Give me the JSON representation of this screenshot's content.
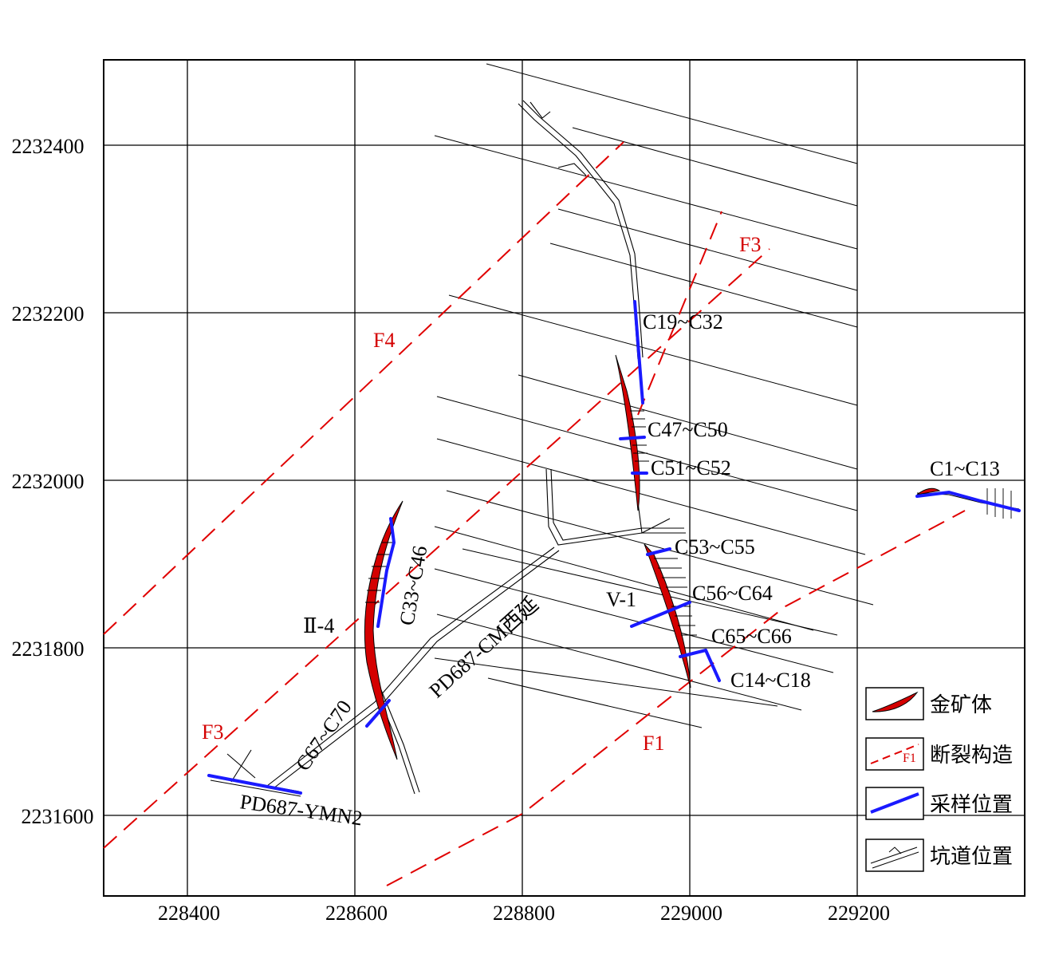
{
  "map": {
    "x_ticks": [
      "228400",
      "228600",
      "228800",
      "229000",
      "229200"
    ],
    "y_ticks": [
      "2232400",
      "2232200",
      "2232000",
      "2231800",
      "2231600"
    ],
    "colors": {
      "ore": "#d40000",
      "fault": "#e00000",
      "sample": "#1a1aff",
      "grid": "#000000",
      "tunnel": "#000000"
    }
  },
  "faults": {
    "f3_upper": "F3",
    "f4": "F4",
    "f3_lower": "F3",
    "f1": "F1"
  },
  "samples": {
    "c19_c32": "C19~C32",
    "c47_c50": "C47~C50",
    "c51_c52": "C51~C52",
    "c53_c55": "C53~C55",
    "c56_c64": "C56~C64",
    "c65_c66": "C65~C66",
    "c14_c18": "C14~C18",
    "c1_c13": "C1~C13",
    "c33_c46": "C33~C46",
    "c67_c70": "C67~C70"
  },
  "orebodies": {
    "v1": "V-1",
    "ii4": "Ⅱ-4"
  },
  "tunnels": {
    "cm": "PD687-CM西延",
    "ymn2": "PD687-YMN2"
  },
  "legend": {
    "ore": "金矿体",
    "fault": "断裂构造",
    "fault_symbol": "F1",
    "sample": "采样位置",
    "tunnel": "坑道位置"
  }
}
